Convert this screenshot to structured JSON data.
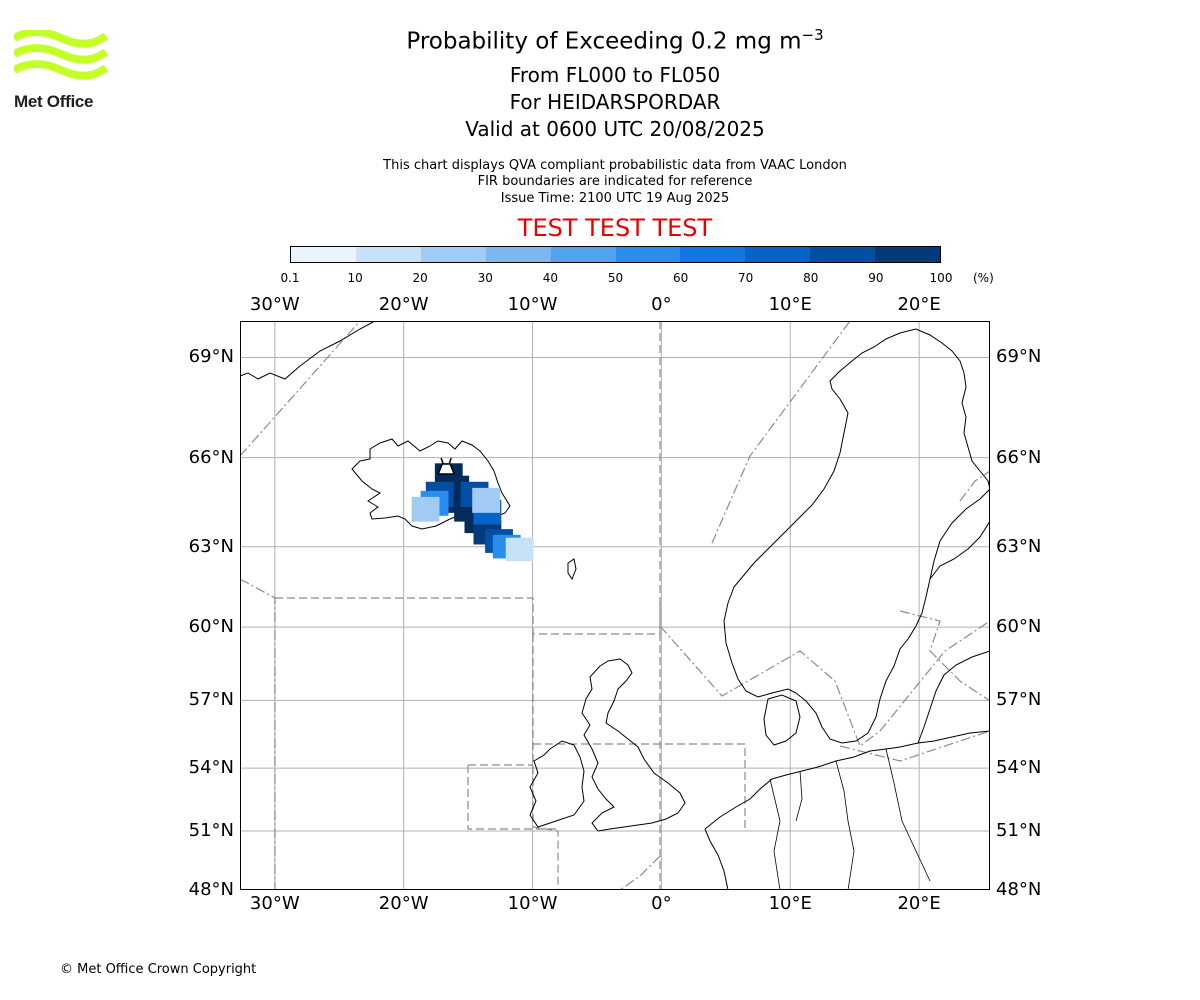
{
  "logo": {
    "name": "Met Office",
    "text": "Met Office",
    "color": "#c4ff26"
  },
  "header": {
    "title_main": "Probability of Exceeding 0.2 mg m",
    "title_sup": "−3",
    "level_range": "From FL000 to FL050",
    "volcano_line": "For HEIDARSPORDAR",
    "valid_line": "Valid at 0600 UTC 20/08/2025",
    "info_line_1": "This chart displays QVA compliant probabilistic data from VAAC London",
    "info_line_2": "FIR boundaries are indicated for reference",
    "issue_time": "Issue Time: 2100 UTC 19 Aug 2025",
    "test_banner": "TEST TEST TEST"
  },
  "colorbar": {
    "labels": [
      "0.1",
      "10",
      "20",
      "30",
      "40",
      "50",
      "60",
      "70",
      "80",
      "90",
      "100"
    ],
    "unit": "(%)",
    "colors": [
      "#eaf4fd",
      "#c6e1f8",
      "#a1cbf4",
      "#7bb8f0",
      "#50a3ee",
      "#2a8ded",
      "#1177e2",
      "#0464c8",
      "#004fa5",
      "#033a7c",
      "#042c5b"
    ]
  },
  "map": {
    "lon_ticks": [
      "30°W",
      "20°W",
      "10°W",
      "0°",
      "10°E",
      "20°E"
    ],
    "lat_ticks": [
      "69°N",
      "66°N",
      "63°N",
      "60°N",
      "57°N",
      "54°N",
      "51°N",
      "48°N"
    ],
    "extent": {
      "lon": [
        -32.7,
        25.5
      ],
      "lat": [
        48,
        70
      ]
    },
    "gridlines": true,
    "volcano_location": {
      "lon": -16.7,
      "lat": 65.7
    },
    "plume": [
      {
        "lon": -16.5,
        "lat": 65.4,
        "p": 100
      },
      {
        "lon": -16.0,
        "lat": 65.0,
        "p": 100
      },
      {
        "lon": -15.5,
        "lat": 64.6,
        "p": 100
      },
      {
        "lon": -15.0,
        "lat": 64.3,
        "p": 100
      },
      {
        "lon": -14.2,
        "lat": 63.9,
        "p": 100
      },
      {
        "lon": -13.5,
        "lat": 63.5,
        "p": 95
      },
      {
        "lon": -12.6,
        "lat": 63.2,
        "p": 85
      },
      {
        "lon": -17.2,
        "lat": 64.8,
        "p": 80
      },
      {
        "lon": -14.5,
        "lat": 64.8,
        "p": 80
      },
      {
        "lon": -13.5,
        "lat": 64.2,
        "p": 75
      },
      {
        "lon": -17.6,
        "lat": 64.5,
        "p": 55
      },
      {
        "lon": -12.0,
        "lat": 63.0,
        "p": 50
      },
      {
        "lon": -18.3,
        "lat": 64.3,
        "p": 20
      },
      {
        "lon": -11.0,
        "lat": 62.9,
        "p": 10
      },
      {
        "lon": -13.6,
        "lat": 64.6,
        "p": 20
      }
    ]
  },
  "footer": {
    "copyright": "© Met Office Crown Copyright"
  }
}
